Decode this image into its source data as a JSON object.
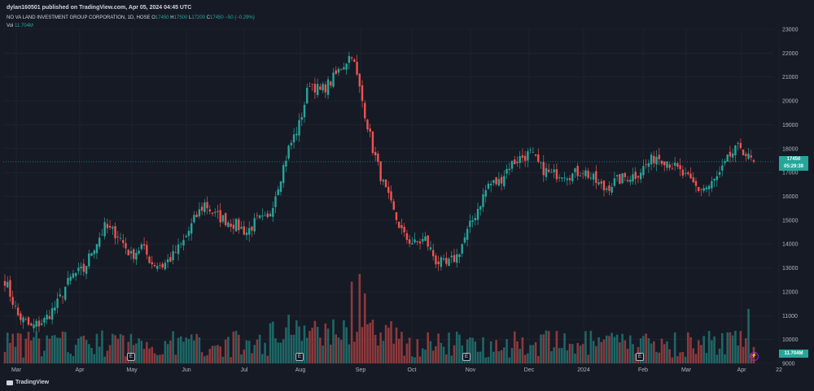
{
  "header": {
    "publisher": "dylan160501 published on TradingView.com, Apr 05, 2024 04:45 UTC"
  },
  "legend": {
    "symbol": "NO VA LAND INVESTMENT GROUP CORPORATION, 1D, HOSE",
    "open_label": "O",
    "open": "17450",
    "high_label": "H",
    "high": "17500",
    "low_label": "L",
    "low": "17200",
    "close_label": "C",
    "close": "17450",
    "change": "−50 (−0.29%)"
  },
  "volume": {
    "label": "Vol",
    "value": "11.704M"
  },
  "price_tag": {
    "price": "17450",
    "countdown": "05:29:39"
  },
  "vol_tag": "11.704M",
  "logo": "TradingView",
  "event_badge_letter": "E",
  "bolt_glyph": "⚡",
  "colors": {
    "up": "#26a69a",
    "down": "#ef5350",
    "background": "#161a25",
    "grid": "#232733"
  },
  "chart_data": {
    "type": "candlestick",
    "price_axis_ticks": [
      "23000",
      "22000",
      "21000",
      "20000",
      "19000",
      "18000",
      "17000",
      "16000",
      "15000",
      "14000",
      "13000",
      "12000",
      "11000",
      "10000",
      "9000"
    ],
    "x_axis_labels": [
      "Mar",
      "Apr",
      "May",
      "Jun",
      "Jul",
      "Aug",
      "Sep",
      "Oct",
      "Nov",
      "Dec",
      "2024",
      "Feb",
      "Mar",
      "Apr",
      "22"
    ],
    "ylim": [
      8900,
      23400
    ],
    "last_price": 17450,
    "close_anchors": [
      [
        0,
        12500
      ],
      [
        5,
        11000
      ],
      [
        10,
        10500
      ],
      [
        15,
        10800
      ],
      [
        20,
        11500
      ],
      [
        23,
        12200
      ],
      [
        26,
        12700
      ],
      [
        30,
        12900
      ],
      [
        33,
        13700
      ],
      [
        38,
        14700
      ],
      [
        43,
        14400
      ],
      [
        48,
        13500
      ],
      [
        52,
        13900
      ],
      [
        56,
        13200
      ],
      [
        60,
        13100
      ],
      [
        64,
        13500
      ],
      [
        68,
        14100
      ],
      [
        72,
        15000
      ],
      [
        76,
        15700
      ],
      [
        80,
        15200
      ],
      [
        84,
        15000
      ],
      [
        88,
        14800
      ],
      [
        92,
        14500
      ],
      [
        96,
        15000
      ],
      [
        100,
        15000
      ],
      [
        104,
        16500
      ],
      [
        108,
        18000
      ],
      [
        112,
        19000
      ],
      [
        116,
        20800
      ],
      [
        120,
        20400
      ],
      [
        124,
        20800
      ],
      [
        128,
        21400
      ],
      [
        132,
        22000
      ],
      [
        136,
        20000
      ],
      [
        140,
        18000
      ],
      [
        144,
        16500
      ],
      [
        148,
        15300
      ],
      [
        152,
        14300
      ],
      [
        156,
        14000
      ],
      [
        160,
        14200
      ],
      [
        164,
        13300
      ],
      [
        168,
        13100
      ],
      [
        172,
        13500
      ],
      [
        176,
        14500
      ],
      [
        180,
        15500
      ],
      [
        184,
        16500
      ],
      [
        188,
        16600
      ],
      [
        192,
        17300
      ],
      [
        196,
        17600
      ],
      [
        200,
        17800
      ],
      [
        204,
        17200
      ],
      [
        208,
        16900
      ],
      [
        212,
        17000
      ],
      [
        216,
        16900
      ],
      [
        220,
        17100
      ],
      [
        224,
        16700
      ],
      [
        228,
        16300
      ],
      [
        232,
        16600
      ],
      [
        236,
        16800
      ],
      [
        240,
        16900
      ],
      [
        244,
        17300
      ],
      [
        248,
        17700
      ],
      [
        252,
        17500
      ],
      [
        256,
        17100
      ],
      [
        260,
        16700
      ],
      [
        264,
        16300
      ],
      [
        268,
        16400
      ],
      [
        272,
        16900
      ],
      [
        276,
        17700
      ],
      [
        280,
        18100
      ],
      [
        283,
        17600
      ],
      [
        285,
        17450
      ]
    ],
    "volume_spikes_millions": [
      [
        132,
        21
      ],
      [
        135,
        23
      ],
      [
        137,
        18
      ],
      [
        108,
        12.5
      ],
      [
        275,
        8
      ],
      [
        283,
        14
      ]
    ],
    "n_bars": 286
  }
}
